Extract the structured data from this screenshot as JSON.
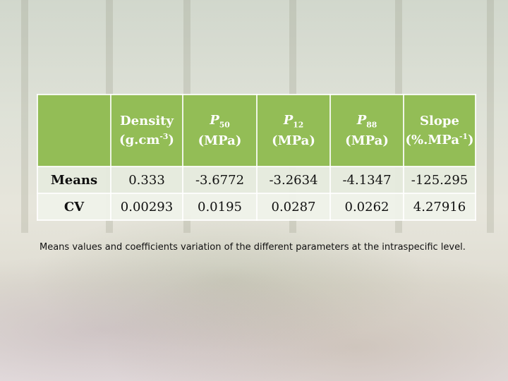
{
  "table": {
    "headers": [
      {
        "name": "Density",
        "unit_base": "(g.cm",
        "unit_sup": "-3",
        "unit_close": ")"
      },
      {
        "name": "P",
        "sub": "50",
        "unit": "(MPa)"
      },
      {
        "name": "P",
        "sub": "12",
        "unit": "(MPa)"
      },
      {
        "name": "P",
        "sub": "88",
        "unit": "(MPa)"
      },
      {
        "name": "Slope",
        "unit_base": "(%.MPa",
        "unit_sup": "-1",
        "unit_close": ")"
      }
    ],
    "rows": [
      {
        "label": "Means",
        "values": [
          "0.333",
          "-3.6772",
          "-3.2634",
          "-4.1347",
          "-125.295"
        ]
      },
      {
        "label": "CV",
        "values": [
          "0.00293",
          "0.0195",
          "0.0287",
          "0.0262",
          "4.27916"
        ]
      }
    ]
  },
  "caption": "Means values and coefficients variation of the different parameters at the intraspecific level."
}
